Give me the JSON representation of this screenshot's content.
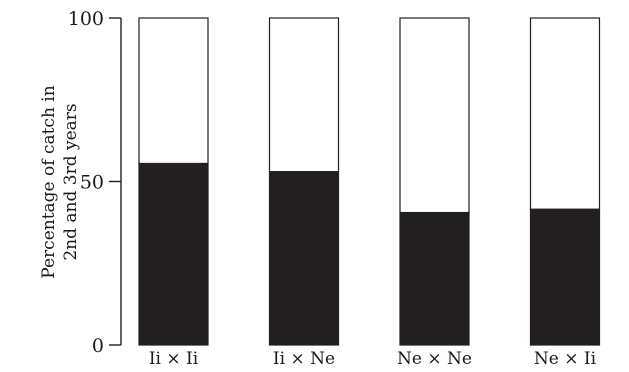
{
  "chart_data": {
    "type": "bar",
    "stacked": true,
    "categories": [
      "Ii × Ii",
      "Ii × Ne",
      "Ne × Ne",
      "Ne × Ii"
    ],
    "values": [
      55.5,
      53,
      40.5,
      41.5
    ],
    "total": 100,
    "ylabel_lines": [
      "Percentage of catch in",
      "2nd and 3rd years"
    ],
    "xlabel": "",
    "ylim": [
      0,
      100
    ],
    "yticks": [
      0,
      50,
      100
    ],
    "grid": false,
    "legend": "none",
    "colors": {
      "filled": "#231f20",
      "remainder": "#ffffff",
      "stroke": "#231f20"
    }
  }
}
